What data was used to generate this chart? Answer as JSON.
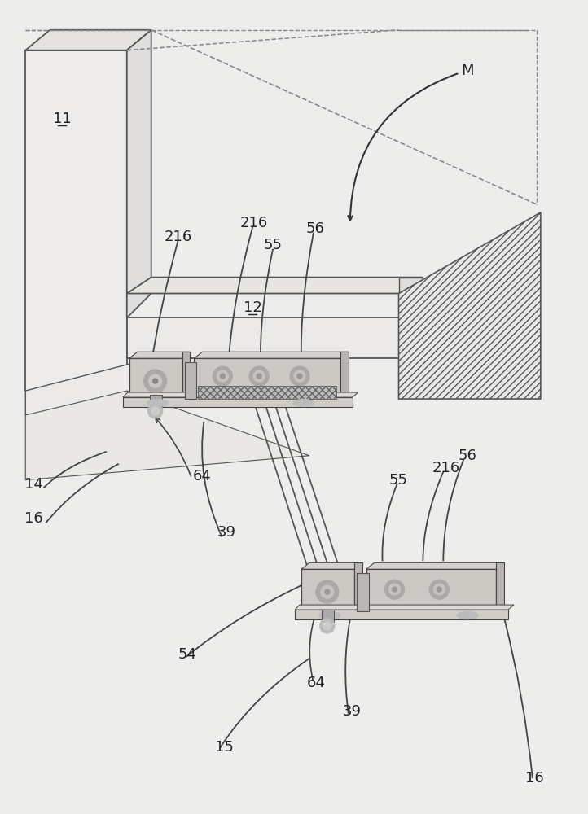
{
  "bg_color": "#ededeb",
  "line_color": "#333333",
  "panel_face": "#e8e6e3",
  "panel_edge": "#555555",
  "shelf_face": "#e0dedd",
  "connector_face": "#c8c5c0",
  "connector_dark": "#a8a5a0",
  "connector_light": "#d8d5d0",
  "hatch_face": "#e0e0e0",
  "label_fs": 13,
  "underline_labels": [
    [
      "11",
      75,
      145
    ],
    [
      "12",
      310,
      378
    ]
  ]
}
